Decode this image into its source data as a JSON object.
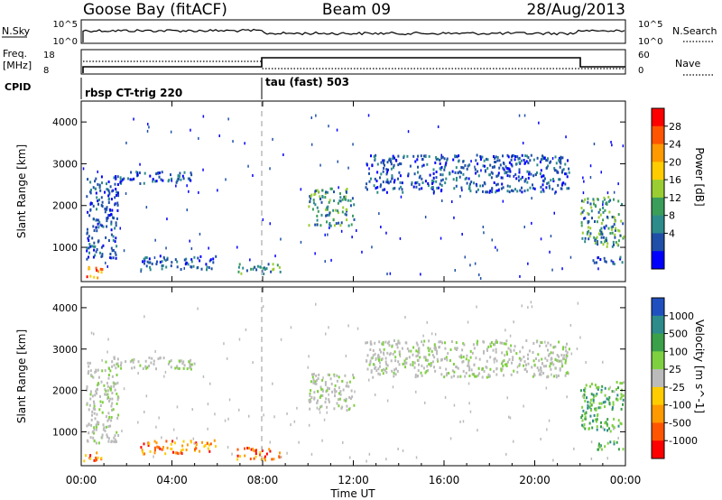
{
  "header": {
    "station": "Goose Bay (fitACF)",
    "beam": "Beam 09",
    "date": "28/Aug/2013"
  },
  "nsky_panel": {
    "left_label": "N.Sky",
    "left_ticks": [
      "10^5",
      "10^0"
    ],
    "right_ticks": [
      "10^5",
      "10^0"
    ],
    "right_label": "N.Search"
  },
  "freq_panel": {
    "left_label_line1": "Freq.",
    "left_label_line2": "[MHz]",
    "left_ticks": [
      "18",
      "8"
    ],
    "right_ticks": [
      "60",
      "0"
    ],
    "right_label": "Nave"
  },
  "cpid_panel": {
    "label": "CPID",
    "programs": [
      {
        "name": "rbsp CT-trig 220",
        "start_hour": 0.0,
        "end_hour": 8.0
      },
      {
        "name": "tau (fast) 503",
        "start_hour": 8.0,
        "end_hour": 24.0
      }
    ]
  },
  "x_axis": {
    "label": "Time UT",
    "ticks": [
      "00:00",
      "04:00",
      "08:00",
      "12:00",
      "16:00",
      "20:00",
      "00:00"
    ],
    "range_hours": [
      0,
      24
    ]
  },
  "chart_data": [
    {
      "type": "heatmap",
      "panel": "power",
      "ylabel": "Slant Range [km]",
      "yticks": [
        1000,
        2000,
        3000,
        4000
      ],
      "ylim": [
        180,
        4500
      ],
      "colorbar": {
        "label": "Power [dB]",
        "ticks": [
          "28",
          "24",
          "20",
          "16",
          "12",
          "8",
          "4"
        ],
        "colors": [
          "#ff0000",
          "#ff5500",
          "#ff9900",
          "#ffcc00",
          "#9acd32",
          "#3a9d5a",
          "#2e8b8b",
          "#1f4fa8",
          "#0000ff"
        ]
      },
      "regions": [
        {
          "t0": 0.05,
          "t1": 0.9,
          "r0": 250,
          "r1": 520,
          "level": "high"
        },
        {
          "t0": 0.2,
          "t1": 1.6,
          "r0": 700,
          "r1": 2700,
          "level": "low"
        },
        {
          "t0": 2.6,
          "t1": 6.0,
          "r0": 450,
          "r1": 780,
          "level": "low"
        },
        {
          "t0": 6.8,
          "t1": 8.8,
          "r0": 350,
          "r1": 600,
          "level": "mid"
        },
        {
          "t0": 1.4,
          "t1": 5.0,
          "r0": 2500,
          "r1": 2800,
          "level": "low"
        },
        {
          "t0": 10.0,
          "t1": 12.0,
          "r0": 1500,
          "r1": 2400,
          "level": "mid"
        },
        {
          "t0": 12.5,
          "t1": 21.5,
          "r0": 2300,
          "r1": 3200,
          "level": "low"
        },
        {
          "t0": 22.0,
          "t1": 23.9,
          "r0": 1000,
          "r1": 2200,
          "level": "mid"
        },
        {
          "t0": 22.5,
          "t1": 23.9,
          "r0": 550,
          "r1": 750,
          "level": "low"
        }
      ]
    },
    {
      "type": "heatmap",
      "panel": "velocity",
      "ylabel": "Slant Range [km]",
      "yticks": [
        1000,
        2000,
        3000,
        4000
      ],
      "ylim": [
        180,
        4500
      ],
      "colorbar": {
        "label": "Velocity [m s^-1]",
        "ticks": [
          "1000",
          "500",
          "100",
          "25",
          "-25",
          "-100",
          "-500",
          "-1000"
        ],
        "colors": [
          "#2050c0",
          "#2e8b8b",
          "#3aa04a",
          "#7fd040",
          "#bbbbbb",
          "#ffcc00",
          "#ff9900",
          "#ff5500",
          "#ff0000"
        ]
      },
      "regions": [
        {
          "t0": 0.05,
          "t1": 0.9,
          "r0": 250,
          "r1": 520,
          "level": "neg"
        },
        {
          "t0": 0.2,
          "t1": 1.6,
          "r0": 700,
          "r1": 2700,
          "level": "zero"
        },
        {
          "t0": 2.6,
          "t1": 6.0,
          "r0": 450,
          "r1": 780,
          "level": "neg"
        },
        {
          "t0": 6.8,
          "t1": 8.8,
          "r0": 300,
          "r1": 600,
          "level": "neg"
        },
        {
          "t0": 1.4,
          "t1": 5.0,
          "r0": 2500,
          "r1": 2800,
          "level": "zero"
        },
        {
          "t0": 10.0,
          "t1": 12.0,
          "r0": 1500,
          "r1": 2400,
          "level": "zero"
        },
        {
          "t0": 12.5,
          "t1": 21.5,
          "r0": 2300,
          "r1": 3200,
          "level": "zero"
        },
        {
          "t0": 22.0,
          "t1": 23.9,
          "r0": 1000,
          "r1": 2200,
          "level": "pos"
        },
        {
          "t0": 22.5,
          "t1": 23.9,
          "r0": 550,
          "r1": 750,
          "level": "pos"
        }
      ]
    }
  ]
}
